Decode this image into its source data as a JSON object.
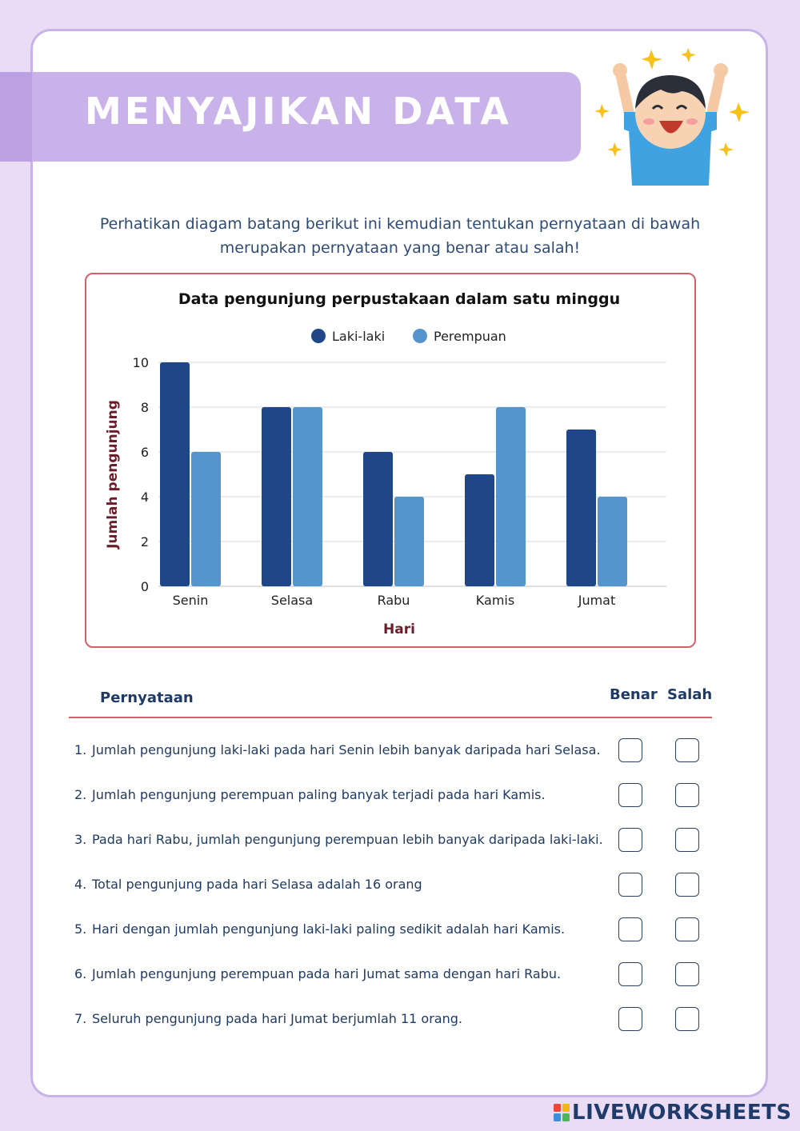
{
  "header": {
    "title": "MENYAJIKAN DATA"
  },
  "intro": "Perhatikan diagam batang berikut ini kemudian tentukan pernyataan di bawah merupakan pernyataan yang benar atau salah!",
  "chart_data": {
    "type": "bar",
    "title": "Data pengunjung perpustakaan dalam satu minggu",
    "categories": [
      "Senin",
      "Selasa",
      "Rabu",
      "Kamis",
      "Jumat"
    ],
    "series": [
      {
        "name": "Laki-laki",
        "color": "#1f4788",
        "values": [
          10,
          8,
          6,
          5,
          7
        ]
      },
      {
        "name": "Perempuan",
        "color": "#5594cc",
        "values": [
          6,
          8,
          4,
          8,
          4
        ]
      }
    ],
    "xlabel": "Hari",
    "ylabel": "Jumlah pengunjung",
    "ylim": [
      0,
      10
    ],
    "yticks": [
      0,
      2,
      4,
      6,
      8,
      10
    ],
    "grid": true,
    "legend": "top-center"
  },
  "table": {
    "col_statement": "Pernyataan",
    "col_true": "Benar",
    "col_false": "Salah",
    "rows": [
      {
        "num": "1.",
        "text": "Jumlah pengunjung laki-laki pada hari Senin lebih banyak daripada hari Selasa."
      },
      {
        "num": "2.",
        "text": "Jumlah pengunjung perempuan paling banyak terjadi pada hari Kamis."
      },
      {
        "num": "3.",
        "text": "Pada hari Rabu, jumlah pengunjung perempuan lebih banyak daripada laki-laki."
      },
      {
        "num": "4.",
        "text": "Total pengunjung pada hari Selasa adalah 16 orang"
      },
      {
        "num": "5.",
        "text": "Hari dengan jumlah pengunjung laki-laki paling sedikit adalah hari Kamis."
      },
      {
        "num": "6.",
        "text": "Jumlah pengunjung perempuan pada hari Jumat sama dengan hari Rabu."
      },
      {
        "num": "7.",
        "text": "Seluruh pengunjung pada hari Jumat berjumlah 11 orang."
      }
    ]
  },
  "footer": {
    "brand": "LIVEWORKSHEETS"
  }
}
